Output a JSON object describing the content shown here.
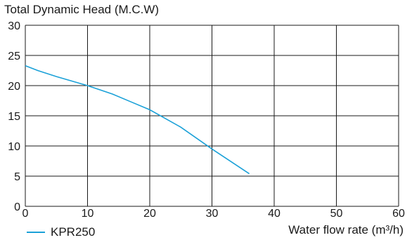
{
  "chart_data": {
    "type": "line",
    "ylabel": "Total Dynamic Head (M.C.W)",
    "xlabel": "Water flow rate (m³/h)",
    "xlim": [
      0,
      60
    ],
    "ylim": [
      0,
      30
    ],
    "xticks": [
      0,
      10,
      20,
      30,
      40,
      50,
      60
    ],
    "yticks": [
      0,
      5,
      10,
      15,
      20,
      25,
      30
    ],
    "grid": true,
    "legend_position": "bottom-left",
    "series": [
      {
        "name": "KPR250",
        "color": "#1ba1d8",
        "x": [
          0,
          2,
          5,
          10,
          14,
          17,
          20,
          25,
          30,
          36
        ],
        "y": [
          23.3,
          22.5,
          21.5,
          20.0,
          18.6,
          17.3,
          16.0,
          13.1,
          9.5,
          5.4
        ]
      }
    ]
  }
}
